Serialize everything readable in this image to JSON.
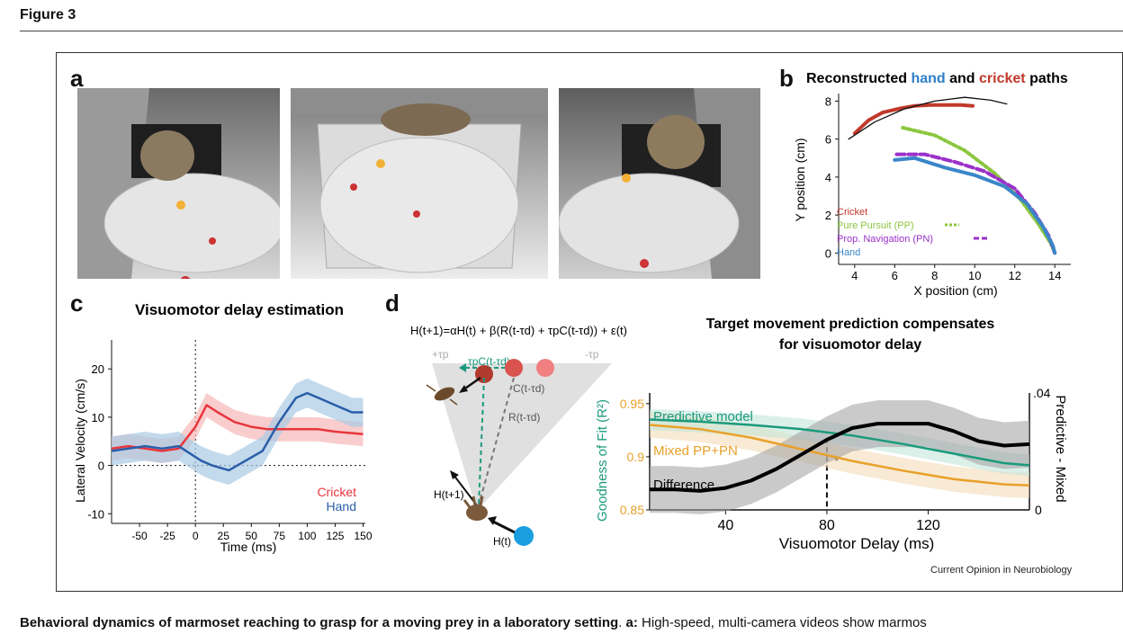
{
  "figure_title": "Figure 3",
  "panels": {
    "a": "a",
    "b": "b",
    "c": "c",
    "d": "d"
  },
  "credit": "Current Opinion in Neurobiology",
  "caption": {
    "bold": "Behavioral dynamics of marmoset reaching to grasp for a moving prey in a laboratory setting",
    "sep": ". ",
    "label": "a:",
    "text": " High-speed, multi-camera videos show marmos"
  },
  "chart_data": [
    {
      "panel": "b",
      "type": "line",
      "title_parts": [
        "Reconstructed ",
        "hand",
        " and ",
        "cricket",
        " paths"
      ],
      "xlabel": "X position (cm)",
      "ylabel": "Y position (cm)",
      "xlim": [
        3.2,
        14.8
      ],
      "ylim": [
        -0.6,
        8.4
      ],
      "xticks": [
        4,
        6,
        8,
        10,
        12,
        14
      ],
      "yticks": [
        0,
        2,
        4,
        6,
        8
      ],
      "legend": "bottom-left",
      "colors": {
        "cricket": "#c0392b",
        "pp": "#8cc63f",
        "pn": "#9b30c9",
        "hand": "#3a86c8",
        "fit": "#111111"
      },
      "series": [
        {
          "name": "Cricket",
          "style": "solid",
          "x": [
            4.0,
            4.7,
            5.4,
            6.2,
            7.0,
            7.8,
            8.6,
            9.3,
            9.9
          ],
          "y": [
            6.3,
            7.0,
            7.4,
            7.6,
            7.75,
            7.8,
            7.8,
            7.8,
            7.75
          ]
        },
        {
          "name": "Pure Pursuit (PP)",
          "style": "dotted",
          "x": [
            6.4,
            8.0,
            9.5,
            11.0,
            12.3,
            13.2,
            13.8,
            14.0
          ],
          "y": [
            6.6,
            6.2,
            5.4,
            4.2,
            2.8,
            1.5,
            0.5,
            0.0
          ]
        },
        {
          "name": "Prop. Navigation (PN)",
          "style": "dashed",
          "x": [
            6.1,
            7.5,
            9.0,
            10.5,
            12.0,
            13.0,
            13.7,
            14.0
          ],
          "y": [
            5.2,
            5.2,
            4.8,
            4.3,
            3.4,
            2.1,
            0.9,
            0.0
          ]
        },
        {
          "name": "Hand",
          "style": "solid",
          "x": [
            6.0,
            7.0,
            8.5,
            10.0,
            11.5,
            12.6,
            13.4,
            13.9,
            14.0
          ],
          "y": [
            4.9,
            5.0,
            4.5,
            4.1,
            3.5,
            2.6,
            1.4,
            0.4,
            0.0
          ]
        },
        {
          "name": "",
          "style": "thin",
          "x": [
            3.7,
            5.0,
            6.5,
            8.0,
            9.5,
            10.8,
            11.6
          ],
          "y": [
            6.0,
            6.9,
            7.6,
            8.0,
            8.2,
            8.05,
            7.85
          ]
        }
      ]
    },
    {
      "panel": "c",
      "type": "line",
      "title": "Visuomotor delay estimation",
      "xlabel": "Time (ms)",
      "ylabel": "Lateral Velocity (cm/s)",
      "xlim": [
        -75,
        152
      ],
      "ylim": [
        -12,
        26
      ],
      "xticks": [
        -50,
        -25,
        0,
        25,
        50,
        75,
        100,
        125,
        150
      ],
      "yticks": [
        -10,
        0,
        10,
        20
      ],
      "legend": "bottom-right",
      "colors": {
        "cricket": "#e8363c",
        "hand": "#2a5ea8"
      },
      "series": [
        {
          "name": "Cricket",
          "x": [
            -75,
            -60,
            -45,
            -30,
            -15,
            0,
            10,
            20,
            35,
            50,
            65,
            80,
            95,
            110,
            125,
            150
          ],
          "y": [
            3.5,
            4,
            3.5,
            3,
            3.5,
            8,
            12.5,
            11,
            9,
            8,
            7.5,
            7.5,
            7.5,
            7.5,
            7,
            6.5
          ],
          "band": 2.5
        },
        {
          "name": "Hand",
          "x": [
            -75,
            -60,
            -45,
            -30,
            -15,
            -5,
            5,
            15,
            30,
            45,
            60,
            75,
            90,
            100,
            110,
            125,
            140,
            150
          ],
          "y": [
            3,
            3.5,
            4,
            3.5,
            4,
            2.5,
            1,
            0,
            -1,
            1,
            3,
            9,
            14,
            15,
            14,
            12.5,
            11,
            11
          ],
          "band": 3
        }
      ]
    },
    {
      "panel": "d",
      "type": "line",
      "title_lines": [
        "Target movement prediction compensates",
        "for visuomotor delay"
      ],
      "xlabel": "Visuomotor Delay (ms)",
      "ylabel_left": "Goodness of Fit (R²)",
      "ylabel_right": "Predictive - Mixed",
      "xlim": [
        10,
        160
      ],
      "ylim_left": [
        0.85,
        0.96
      ],
      "ylim_right": [
        0,
        0.04
      ],
      "xticks": [
        40,
        80,
        120
      ],
      "yticks_left": [
        0.85,
        0.9,
        0.95
      ],
      "yticks_left_labels": [
        "0.85",
        "0.9",
        "0.95"
      ],
      "yticks_right_labels": [
        "0",
        ".04"
      ],
      "annotation": {
        "x": 80,
        "text": "*"
      },
      "colors": {
        "predictive": "#1a9a7c",
        "mixed": "#e8a12a",
        "difference": "#000000"
      },
      "series": [
        {
          "name": "Predictive model",
          "axis": "left",
          "x": [
            10,
            30,
            50,
            70,
            90,
            110,
            130,
            150,
            160
          ],
          "y": [
            0.935,
            0.933,
            0.93,
            0.926,
            0.92,
            0.912,
            0.903,
            0.894,
            0.892
          ]
        },
        {
          "name": "Mixed PP+PN",
          "axis": "left",
          "x": [
            10,
            30,
            50,
            70,
            90,
            110,
            130,
            150,
            160
          ],
          "y": [
            0.93,
            0.926,
            0.918,
            0.907,
            0.896,
            0.887,
            0.879,
            0.874,
            0.873
          ]
        },
        {
          "name": "Difference",
          "axis": "right",
          "x": [
            10,
            20,
            30,
            40,
            50,
            60,
            70,
            80,
            90,
            100,
            110,
            120,
            130,
            140,
            150,
            160
          ],
          "y": [
            0.007,
            0.007,
            0.0065,
            0.0075,
            0.01,
            0.014,
            0.019,
            0.024,
            0.028,
            0.0295,
            0.0295,
            0.0295,
            0.027,
            0.0235,
            0.022,
            0.0225
          ]
        }
      ]
    }
  ],
  "model": {
    "equation": "H(t+1)=αH(t) + β(R(t-τd) + τpC(t-τd)) + ε(t)",
    "labels": {
      "plus_tau": "+τp",
      "minus_tau": "-τp",
      "taupC": "τpC(t-τd)",
      "C": "C(t-τd)",
      "R": "R(t-τd)",
      "H_next": "H(t+1)",
      "H_t": "H(t)"
    },
    "colors": {
      "cricket_dark": "#b03a2e",
      "cricket_mid": "#d9534f",
      "cricket_light": "#f08080",
      "hand_dot": "#1a9ee0",
      "pred": "#1a9a7c"
    }
  }
}
